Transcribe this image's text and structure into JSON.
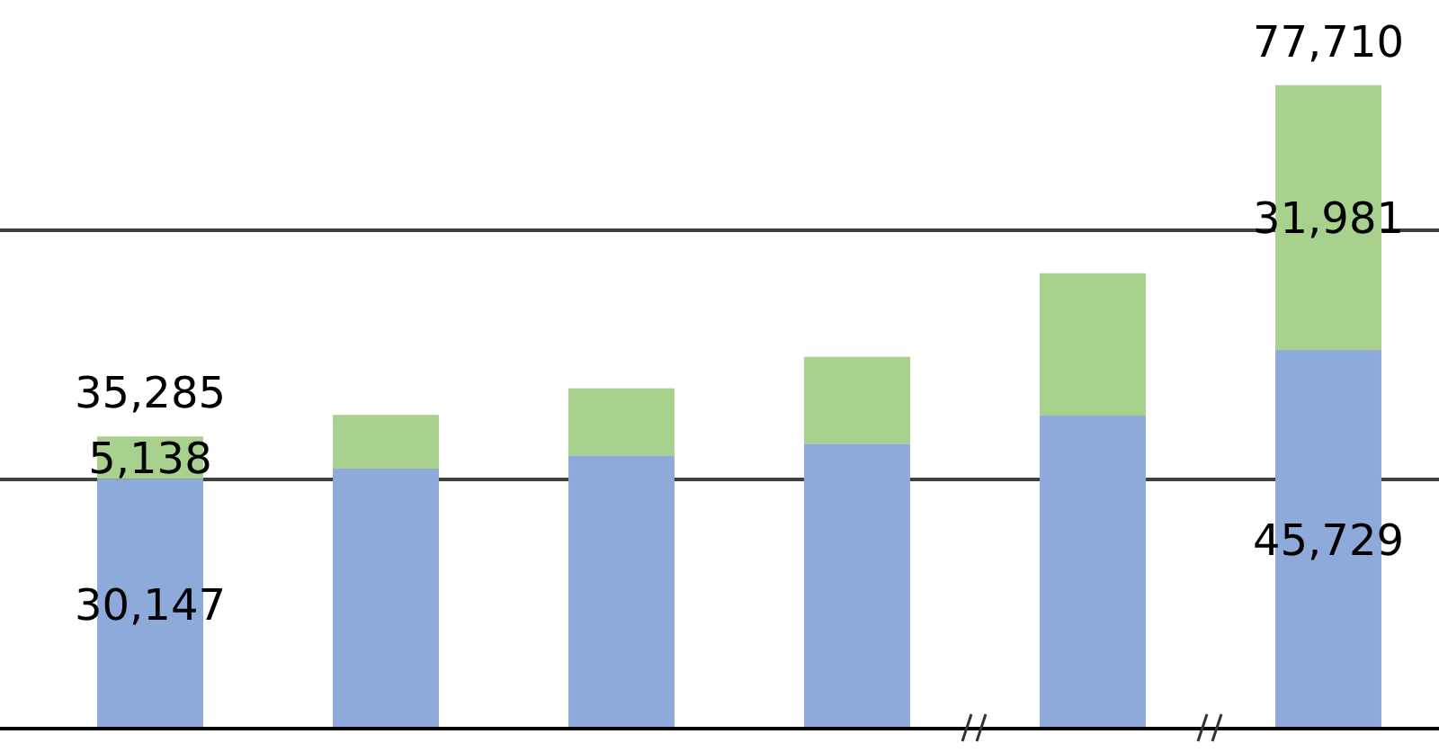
{
  "chart_data": {
    "type": "bar",
    "stacked": true,
    "categories": [
      null,
      null,
      null,
      null,
      null,
      null
    ],
    "series": [
      {
        "color": "#8eaadb",
        "values": [
          30147,
          31400,
          33000,
          34400,
          37800,
          45729
        ],
        "value_labels": [
          "30,147",
          null,
          null,
          null,
          null,
          "45,729"
        ]
      },
      {
        "color": "#a9d18e",
        "values": [
          5138,
          6500,
          8100,
          10500,
          17200,
          31981
        ],
        "value_labels": [
          "5,138",
          null,
          null,
          null,
          null,
          "31,981"
        ]
      }
    ],
    "totals": [
      "35,285",
      null,
      null,
      null,
      null,
      "77,710"
    ],
    "ylim": [
      0,
      88000
    ],
    "ref_lines": [
      {
        "axis": "y",
        "value": 30100,
        "color": "#404040"
      },
      {
        "axis": "y",
        "value": 60200,
        "color": "#404040"
      }
    ]
  }
}
